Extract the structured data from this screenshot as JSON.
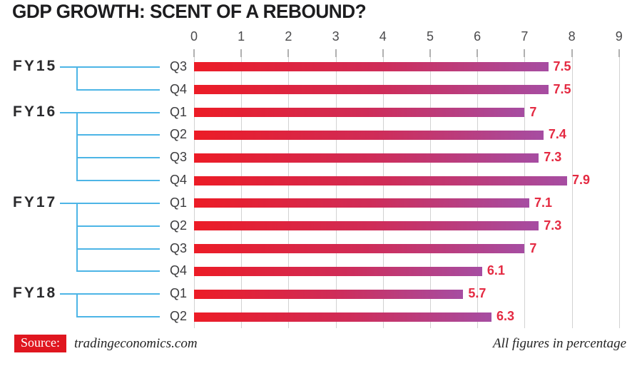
{
  "title": "GDP GROWTH: SCENT OF A REBOUND?",
  "chart_data": {
    "type": "bar",
    "orientation": "horizontal",
    "title": "GDP GROWTH: SCENT OF A REBOUND?",
    "units": "percent",
    "xlim": [
      0,
      9
    ],
    "x_ticks": [
      0,
      1,
      2,
      3,
      4,
      5,
      6,
      7,
      8,
      9
    ],
    "grid": true,
    "groups": [
      {
        "fiscal_year": "FY15",
        "quarters": [
          {
            "label": "Q3",
            "value": 7.5
          },
          {
            "label": "Q4",
            "value": 7.5
          }
        ]
      },
      {
        "fiscal_year": "FY16",
        "quarters": [
          {
            "label": "Q1",
            "value": 7
          },
          {
            "label": "Q2",
            "value": 7.4
          },
          {
            "label": "Q3",
            "value": 7.3
          },
          {
            "label": "Q4",
            "value": 7.9
          }
        ]
      },
      {
        "fiscal_year": "FY17",
        "quarters": [
          {
            "label": "Q1",
            "value": 7.1
          },
          {
            "label": "Q2",
            "value": 7.3
          },
          {
            "label": "Q3",
            "value": 7
          },
          {
            "label": "Q4",
            "value": 6.1
          }
        ]
      },
      {
        "fiscal_year": "FY18",
        "quarters": [
          {
            "label": "Q1",
            "value": 5.7
          },
          {
            "label": "Q2",
            "value": 6.3
          }
        ]
      }
    ]
  },
  "footer": {
    "source_label": "Source:",
    "source_value": "tradingeconomics.com",
    "note": "All figures in percentage"
  },
  "colors": {
    "bar_gradient_start": "#ec1c26",
    "bar_gradient_mid": "#cf2c58",
    "bar_gradient_end": "#a64da2",
    "value_label": "#e42a42",
    "bracket_line": "#4db5e6",
    "source_badge_bg": "#e0161f"
  }
}
